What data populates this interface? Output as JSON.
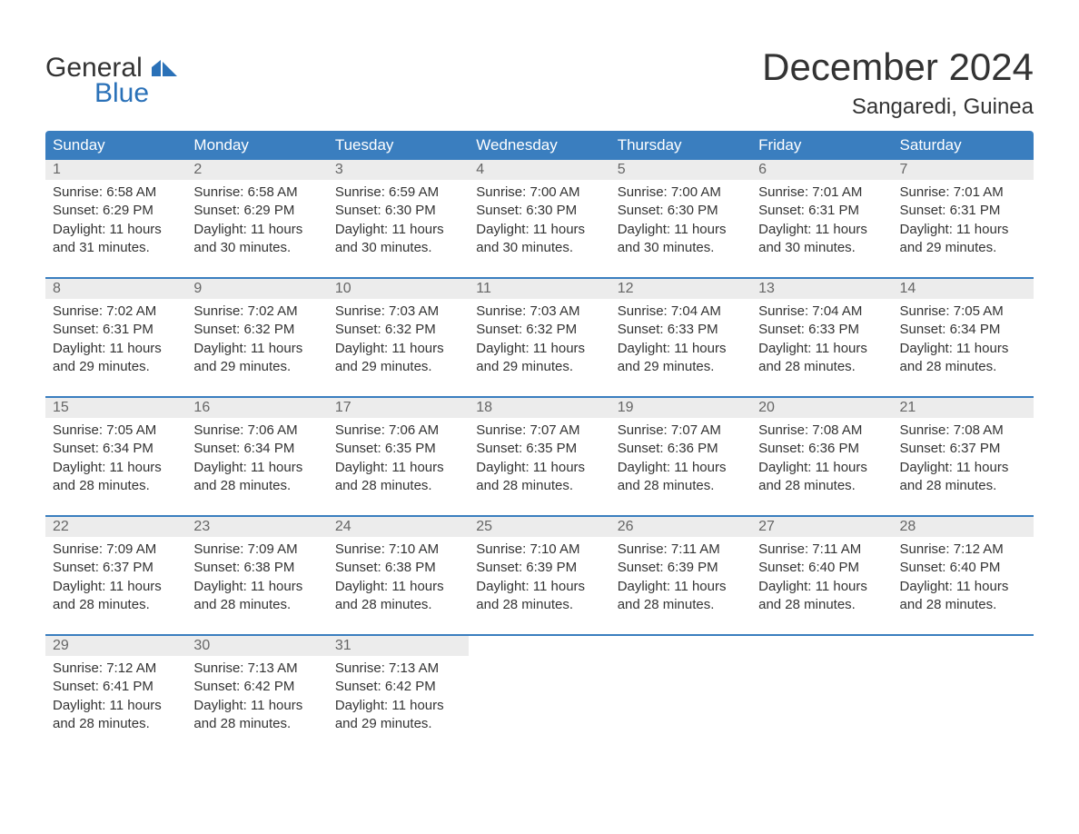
{
  "brand": {
    "word1": "General",
    "word2": "Blue",
    "accent_color": "#2a71b8"
  },
  "title": "December 2024",
  "location": "Sangaredi, Guinea",
  "colors": {
    "header_bg": "#3a7ebf",
    "header_text": "#ffffff",
    "daynum_bg": "#ececec",
    "daynum_text": "#666666",
    "body_text": "#333333",
    "page_bg": "#ffffff",
    "week_border": "#3a7ebf"
  },
  "weekdays": [
    "Sunday",
    "Monday",
    "Tuesday",
    "Wednesday",
    "Thursday",
    "Friday",
    "Saturday"
  ],
  "weeks": [
    [
      {
        "n": "1",
        "sr": "Sunrise: 6:58 AM",
        "ss": "Sunset: 6:29 PM",
        "d1": "Daylight: 11 hours",
        "d2": "and 31 minutes."
      },
      {
        "n": "2",
        "sr": "Sunrise: 6:58 AM",
        "ss": "Sunset: 6:29 PM",
        "d1": "Daylight: 11 hours",
        "d2": "and 30 minutes."
      },
      {
        "n": "3",
        "sr": "Sunrise: 6:59 AM",
        "ss": "Sunset: 6:30 PM",
        "d1": "Daylight: 11 hours",
        "d2": "and 30 minutes."
      },
      {
        "n": "4",
        "sr": "Sunrise: 7:00 AM",
        "ss": "Sunset: 6:30 PM",
        "d1": "Daylight: 11 hours",
        "d2": "and 30 minutes."
      },
      {
        "n": "5",
        "sr": "Sunrise: 7:00 AM",
        "ss": "Sunset: 6:30 PM",
        "d1": "Daylight: 11 hours",
        "d2": "and 30 minutes."
      },
      {
        "n": "6",
        "sr": "Sunrise: 7:01 AM",
        "ss": "Sunset: 6:31 PM",
        "d1": "Daylight: 11 hours",
        "d2": "and 30 minutes."
      },
      {
        "n": "7",
        "sr": "Sunrise: 7:01 AM",
        "ss": "Sunset: 6:31 PM",
        "d1": "Daylight: 11 hours",
        "d2": "and 29 minutes."
      }
    ],
    [
      {
        "n": "8",
        "sr": "Sunrise: 7:02 AM",
        "ss": "Sunset: 6:31 PM",
        "d1": "Daylight: 11 hours",
        "d2": "and 29 minutes."
      },
      {
        "n": "9",
        "sr": "Sunrise: 7:02 AM",
        "ss": "Sunset: 6:32 PM",
        "d1": "Daylight: 11 hours",
        "d2": "and 29 minutes."
      },
      {
        "n": "10",
        "sr": "Sunrise: 7:03 AM",
        "ss": "Sunset: 6:32 PM",
        "d1": "Daylight: 11 hours",
        "d2": "and 29 minutes."
      },
      {
        "n": "11",
        "sr": "Sunrise: 7:03 AM",
        "ss": "Sunset: 6:32 PM",
        "d1": "Daylight: 11 hours",
        "d2": "and 29 minutes."
      },
      {
        "n": "12",
        "sr": "Sunrise: 7:04 AM",
        "ss": "Sunset: 6:33 PM",
        "d1": "Daylight: 11 hours",
        "d2": "and 29 minutes."
      },
      {
        "n": "13",
        "sr": "Sunrise: 7:04 AM",
        "ss": "Sunset: 6:33 PM",
        "d1": "Daylight: 11 hours",
        "d2": "and 28 minutes."
      },
      {
        "n": "14",
        "sr": "Sunrise: 7:05 AM",
        "ss": "Sunset: 6:34 PM",
        "d1": "Daylight: 11 hours",
        "d2": "and 28 minutes."
      }
    ],
    [
      {
        "n": "15",
        "sr": "Sunrise: 7:05 AM",
        "ss": "Sunset: 6:34 PM",
        "d1": "Daylight: 11 hours",
        "d2": "and 28 minutes."
      },
      {
        "n": "16",
        "sr": "Sunrise: 7:06 AM",
        "ss": "Sunset: 6:34 PM",
        "d1": "Daylight: 11 hours",
        "d2": "and 28 minutes."
      },
      {
        "n": "17",
        "sr": "Sunrise: 7:06 AM",
        "ss": "Sunset: 6:35 PM",
        "d1": "Daylight: 11 hours",
        "d2": "and 28 minutes."
      },
      {
        "n": "18",
        "sr": "Sunrise: 7:07 AM",
        "ss": "Sunset: 6:35 PM",
        "d1": "Daylight: 11 hours",
        "d2": "and 28 minutes."
      },
      {
        "n": "19",
        "sr": "Sunrise: 7:07 AM",
        "ss": "Sunset: 6:36 PM",
        "d1": "Daylight: 11 hours",
        "d2": "and 28 minutes."
      },
      {
        "n": "20",
        "sr": "Sunrise: 7:08 AM",
        "ss": "Sunset: 6:36 PM",
        "d1": "Daylight: 11 hours",
        "d2": "and 28 minutes."
      },
      {
        "n": "21",
        "sr": "Sunrise: 7:08 AM",
        "ss": "Sunset: 6:37 PM",
        "d1": "Daylight: 11 hours",
        "d2": "and 28 minutes."
      }
    ],
    [
      {
        "n": "22",
        "sr": "Sunrise: 7:09 AM",
        "ss": "Sunset: 6:37 PM",
        "d1": "Daylight: 11 hours",
        "d2": "and 28 minutes."
      },
      {
        "n": "23",
        "sr": "Sunrise: 7:09 AM",
        "ss": "Sunset: 6:38 PM",
        "d1": "Daylight: 11 hours",
        "d2": "and 28 minutes."
      },
      {
        "n": "24",
        "sr": "Sunrise: 7:10 AM",
        "ss": "Sunset: 6:38 PM",
        "d1": "Daylight: 11 hours",
        "d2": "and 28 minutes."
      },
      {
        "n": "25",
        "sr": "Sunrise: 7:10 AM",
        "ss": "Sunset: 6:39 PM",
        "d1": "Daylight: 11 hours",
        "d2": "and 28 minutes."
      },
      {
        "n": "26",
        "sr": "Sunrise: 7:11 AM",
        "ss": "Sunset: 6:39 PM",
        "d1": "Daylight: 11 hours",
        "d2": "and 28 minutes."
      },
      {
        "n": "27",
        "sr": "Sunrise: 7:11 AM",
        "ss": "Sunset: 6:40 PM",
        "d1": "Daylight: 11 hours",
        "d2": "and 28 minutes."
      },
      {
        "n": "28",
        "sr": "Sunrise: 7:12 AM",
        "ss": "Sunset: 6:40 PM",
        "d1": "Daylight: 11 hours",
        "d2": "and 28 minutes."
      }
    ],
    [
      {
        "n": "29",
        "sr": "Sunrise: 7:12 AM",
        "ss": "Sunset: 6:41 PM",
        "d1": "Daylight: 11 hours",
        "d2": "and 28 minutes."
      },
      {
        "n": "30",
        "sr": "Sunrise: 7:13 AM",
        "ss": "Sunset: 6:42 PM",
        "d1": "Daylight: 11 hours",
        "d2": "and 28 minutes."
      },
      {
        "n": "31",
        "sr": "Sunrise: 7:13 AM",
        "ss": "Sunset: 6:42 PM",
        "d1": "Daylight: 11 hours",
        "d2": "and 29 minutes."
      },
      null,
      null,
      null,
      null
    ]
  ]
}
